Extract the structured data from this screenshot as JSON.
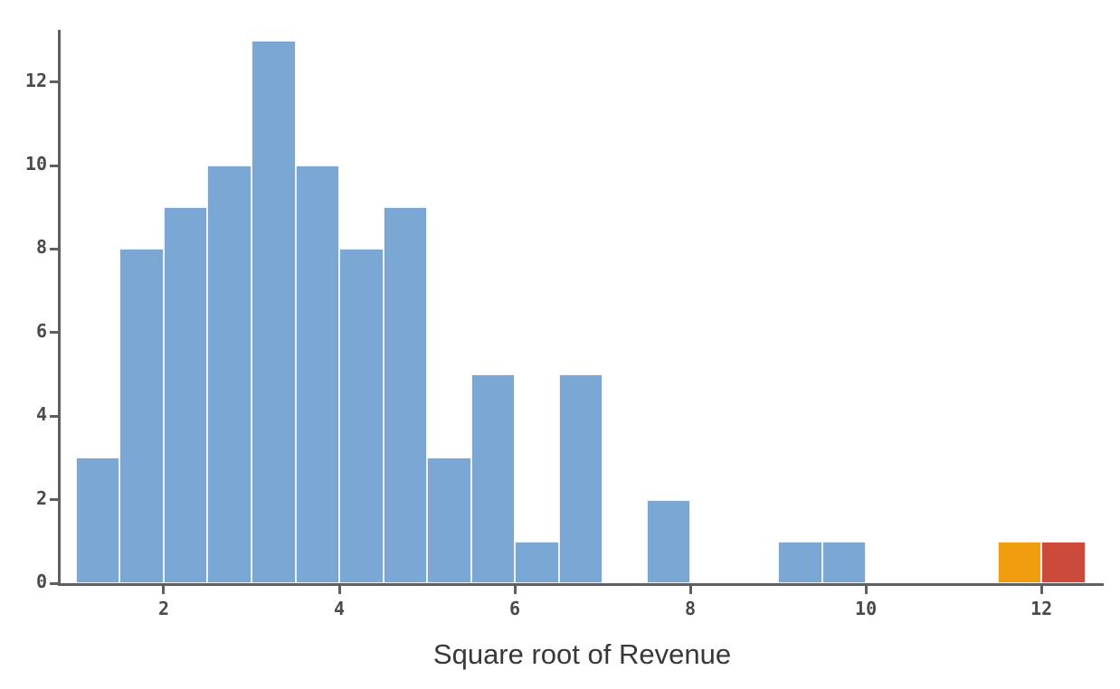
{
  "chart_data": {
    "type": "bar",
    "subtype": "histogram",
    "title": "",
    "xlabel": "Square root of Revenue",
    "ylabel": "",
    "xlim": [
      0.825,
      12.71
    ],
    "ylim": [
      0,
      13.25
    ],
    "x_ticks": [
      2,
      4,
      6,
      8,
      10,
      12
    ],
    "y_ticks": [
      0,
      2,
      4,
      6,
      8,
      10,
      12
    ],
    "bin_width": 0.5,
    "grid": "off",
    "legend": "none",
    "colors": {
      "default_bar": "#7BA7D4",
      "highlight_orange": "#F09D0D",
      "highlight_red": "#CC4A3C",
      "axis": "#5F5F5F",
      "tick_label": "#4A4A4A",
      "axis_title": "#38383C",
      "bar_edge": "#F6FAFD",
      "background": "#FFFFFF"
    },
    "bins": [
      {
        "start": 1.0,
        "end": 1.5,
        "count": 3
      },
      {
        "start": 1.5,
        "end": 2.0,
        "count": 8
      },
      {
        "start": 2.0,
        "end": 2.5,
        "count": 9
      },
      {
        "start": 2.5,
        "end": 3.0,
        "count": 10
      },
      {
        "start": 3.0,
        "end": 3.5,
        "count": 13
      },
      {
        "start": 3.5,
        "end": 4.0,
        "count": 10
      },
      {
        "start": 4.0,
        "end": 4.5,
        "count": 8
      },
      {
        "start": 4.5,
        "end": 5.0,
        "count": 9
      },
      {
        "start": 5.0,
        "end": 5.5,
        "count": 3
      },
      {
        "start": 5.5,
        "end": 6.0,
        "count": 5
      },
      {
        "start": 6.0,
        "end": 6.5,
        "count": 1
      },
      {
        "start": 6.5,
        "end": 7.0,
        "count": 5
      },
      {
        "start": 7.0,
        "end": 7.5,
        "count": 0
      },
      {
        "start": 7.5,
        "end": 8.0,
        "count": 2
      },
      {
        "start": 8.0,
        "end": 8.5,
        "count": 0
      },
      {
        "start": 8.5,
        "end": 9.0,
        "count": 0
      },
      {
        "start": 9.0,
        "end": 9.5,
        "count": 1
      },
      {
        "start": 9.5,
        "end": 10.0,
        "count": 1
      },
      {
        "start": 10.0,
        "end": 10.5,
        "count": 0
      },
      {
        "start": 10.5,
        "end": 11.0,
        "count": 0
      },
      {
        "start": 11.0,
        "end": 11.5,
        "count": 0
      },
      {
        "start": 11.5,
        "end": 12.0,
        "count": 1,
        "color": "#F09D0D"
      },
      {
        "start": 12.0,
        "end": 12.5,
        "count": 1,
        "color": "#CC4A3C"
      }
    ]
  }
}
